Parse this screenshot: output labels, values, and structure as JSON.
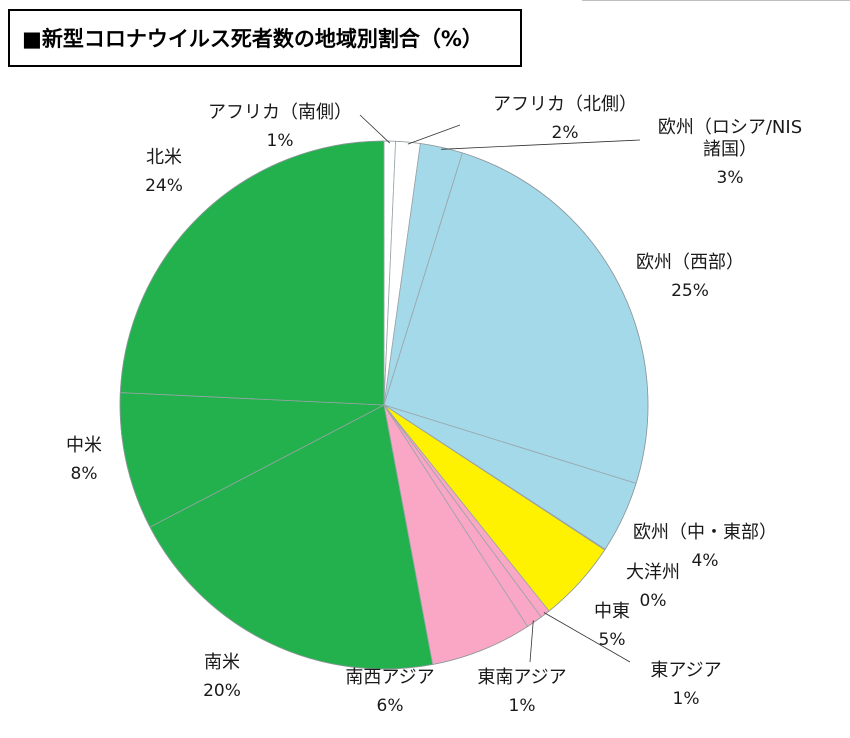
{
  "title": "■新型コロナウイルス死者数の地域別割合（%）",
  "chart_data": {
    "type": "pie",
    "title": "■新型コロナウイルス死者数の地域別割合（%）",
    "start": "12 o'clock",
    "direction": "clockwise",
    "slices": [
      {
        "name": "アフリカ（南側）",
        "pct_label": "1%",
        "value": 0.7,
        "color": "#ffffff",
        "name_lines": [
          "アフリカ（南側）"
        ]
      },
      {
        "name": "アフリカ（北側）",
        "pct_label": "2%",
        "value": 1.5,
        "color": "#ffffff",
        "name_lines": [
          "アフリカ（北側）"
        ]
      },
      {
        "name": "欧州（ロシア/NIS諸国）",
        "pct_label": "3%",
        "value": 2.6,
        "color": "#a3d9e9",
        "name_lines": [
          "欧州（ロシア/NIS",
          "諸国）"
        ]
      },
      {
        "name": "欧州（西部）",
        "pct_label": "25%",
        "value": 25.0,
        "color": "#a3d9e9",
        "name_lines": [
          "欧州（西部）"
        ]
      },
      {
        "name": "欧州（中・東部）",
        "pct_label": "4%",
        "value": 4.4,
        "color": "#a3d9e9",
        "name_lines": [
          "欧州（中・東部）"
        ]
      },
      {
        "name": "大洋州",
        "pct_label": "0%",
        "value": 0.05,
        "color": "#fff200",
        "name_lines": [
          "大洋州"
        ]
      },
      {
        "name": "中東",
        "pct_label": "5%",
        "value": 5.0,
        "color": "#fff200",
        "name_lines": [
          "中東"
        ]
      },
      {
        "name": "東アジア",
        "pct_label": "1%",
        "value": 0.6,
        "color": "#f9a7c5",
        "name_lines": [
          "東アジア"
        ]
      },
      {
        "name": "東南アジア",
        "pct_label": "1%",
        "value": 1.0,
        "color": "#f9a7c5",
        "name_lines": [
          "東南アジア"
        ]
      },
      {
        "name": "南西アジア",
        "pct_label": "6%",
        "value": 6.2,
        "color": "#f9a7c5",
        "name_lines": [
          "南西アジア"
        ]
      },
      {
        "name": "南米",
        "pct_label": "20%",
        "value": 20.3,
        "color": "#22b14c",
        "name_lines": [
          "南米"
        ]
      },
      {
        "name": "中米",
        "pct_label": "8%",
        "value": 8.4,
        "color": "#22b14c",
        "name_lines": [
          "中米"
        ]
      },
      {
        "name": "北米",
        "pct_label": "24%",
        "value": 24.25,
        "color": "#22b14c",
        "name_lines": [
          "北米"
        ]
      }
    ]
  }
}
